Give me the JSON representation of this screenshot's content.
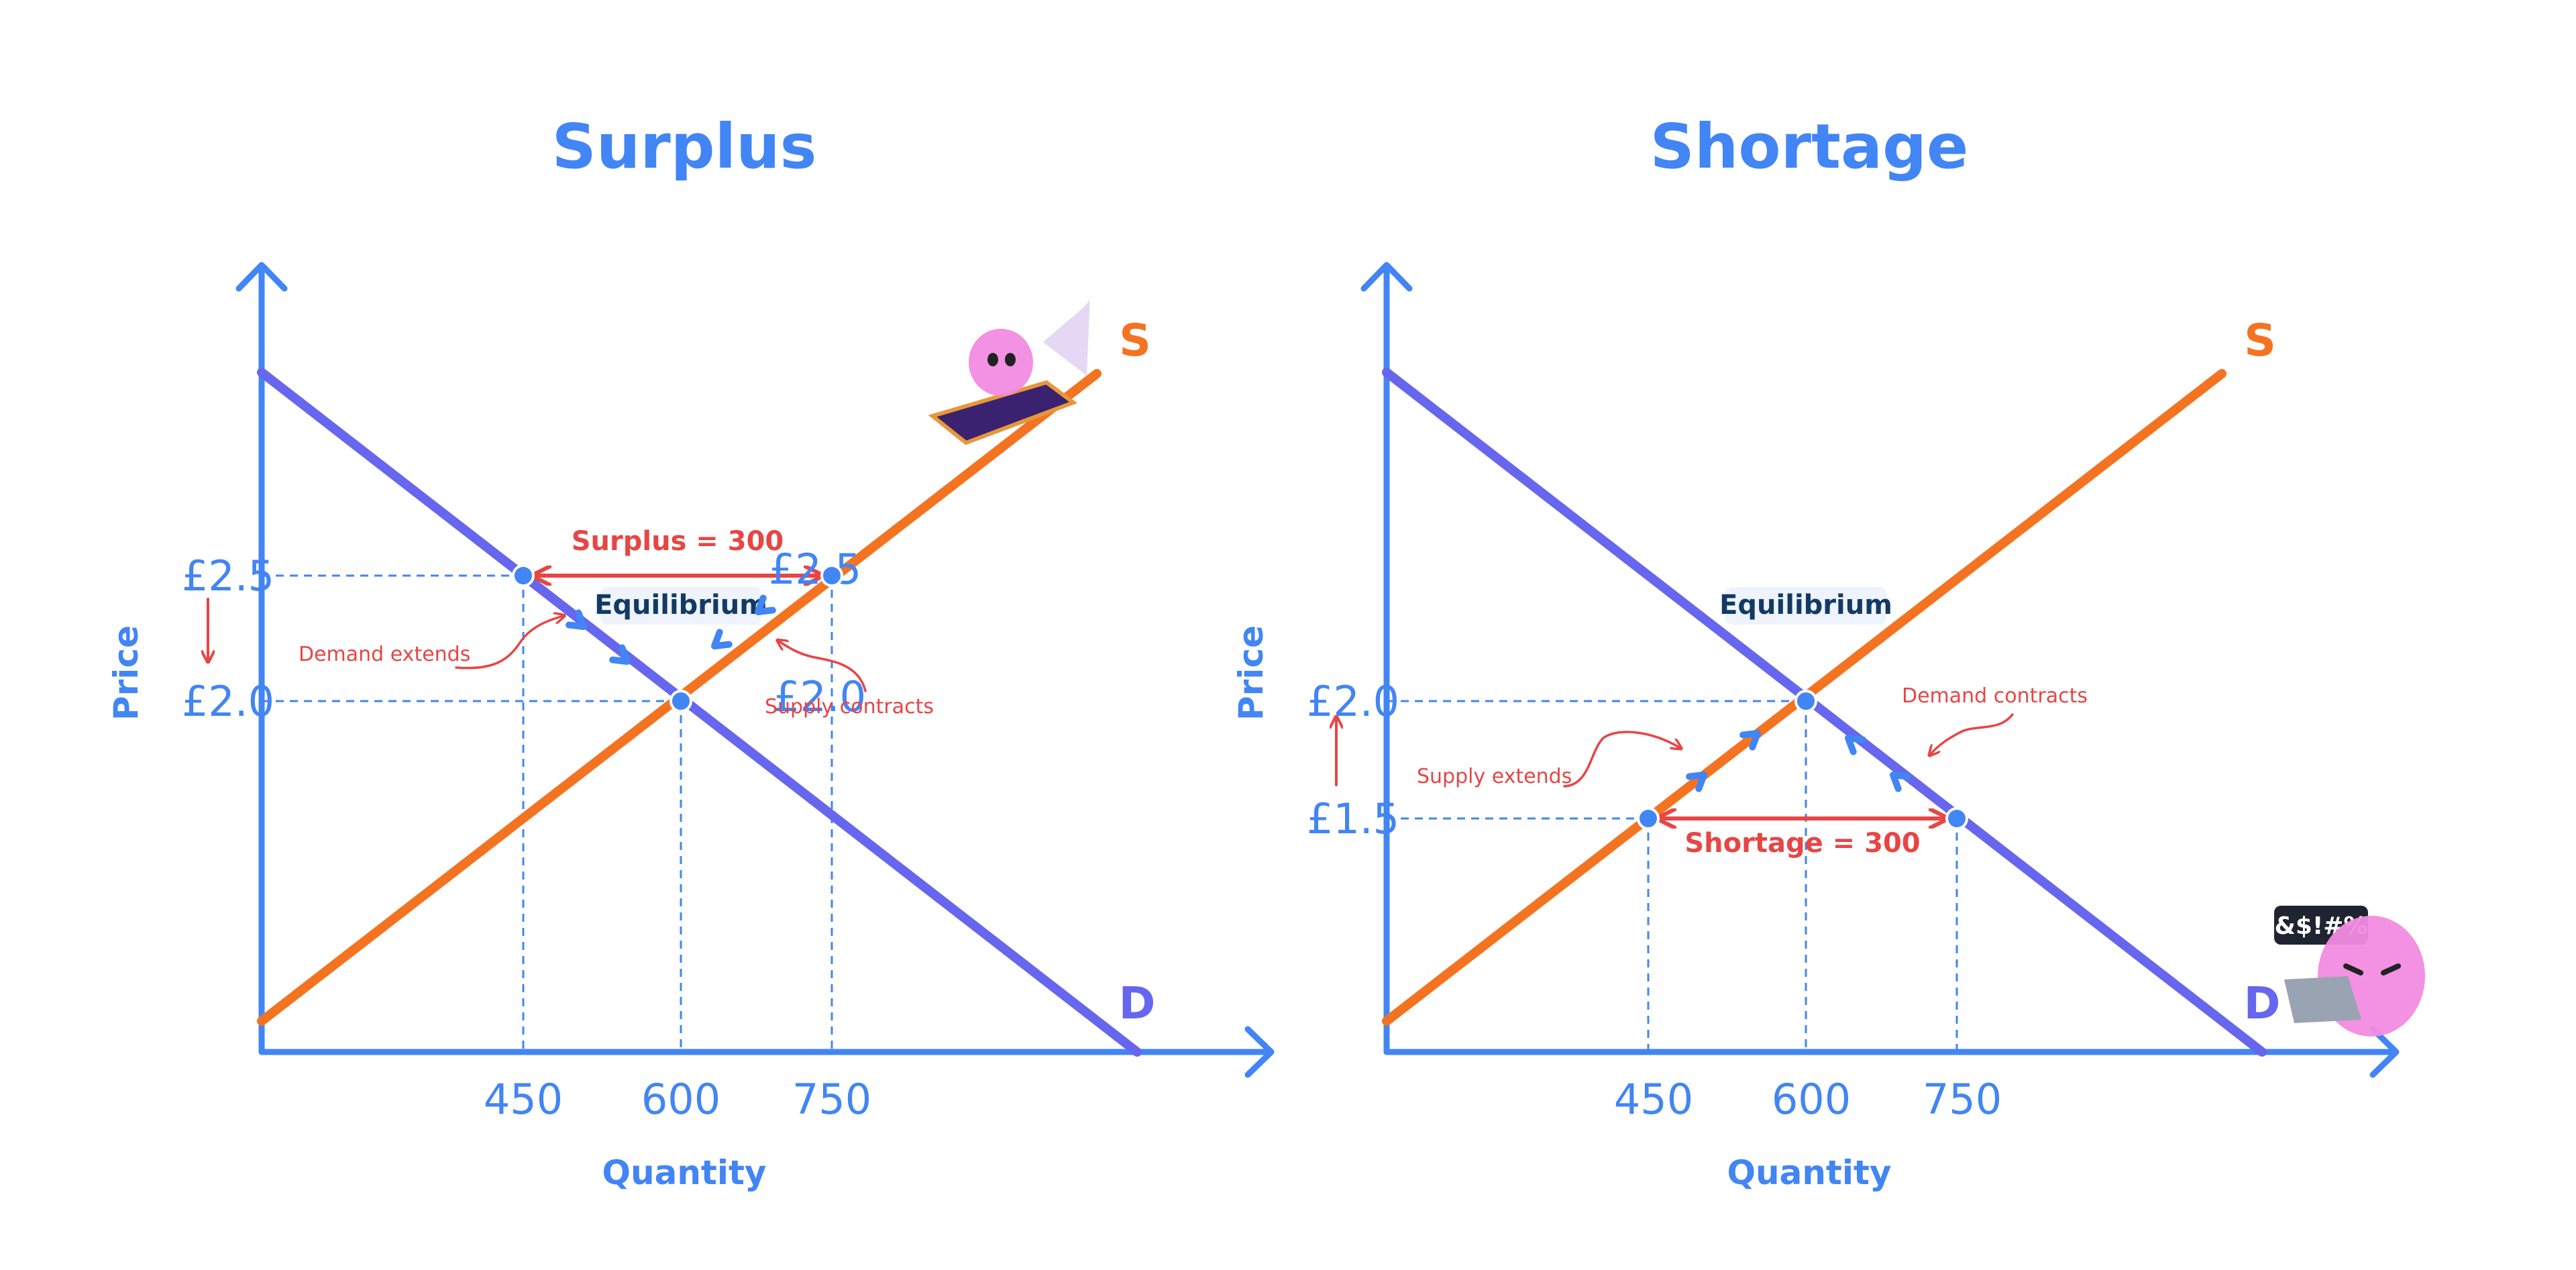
{
  "colors": {
    "axis": "#4285F4",
    "demand": "#6666EE",
    "supply": "#F47321",
    "guide": "#4285F4",
    "annotation": "#E84545",
    "eq_text": "#123A63",
    "point_fill": "#4285F4",
    "mascot": "#F28BE0"
  },
  "chart_data": [
    {
      "type": "line",
      "title": "Surplus",
      "xlabel": "Quantity",
      "ylabel": "Price",
      "x_ticks": [
        450,
        600,
        750
      ],
      "series": [
        {
          "name": "S",
          "kind": "supply"
        },
        {
          "name": "D",
          "kind": "demand"
        }
      ],
      "equilibrium": {
        "label": "Equilibrium",
        "quantity": 600,
        "price": 2.0
      },
      "price_ticks": [
        "£2.5",
        "£2.0"
      ],
      "in_plot_labels": [
        "£2.5",
        "£2.0"
      ],
      "price_change_arrow": "down",
      "gap": {
        "label": "Surplus = 300",
        "price": 2.5,
        "from_quantity": 450,
        "to_quantity": 750
      },
      "notes": [
        {
          "text": "Demand extends",
          "target": "demand"
        },
        {
          "text": "Supply contracts",
          "target": "supply"
        }
      ]
    },
    {
      "type": "line",
      "title": "Shortage",
      "xlabel": "Quantity",
      "ylabel": "Price",
      "x_ticks": [
        450,
        600,
        750
      ],
      "series": [
        {
          "name": "S",
          "kind": "supply"
        },
        {
          "name": "D",
          "kind": "demand"
        }
      ],
      "equilibrium": {
        "label": "Equilibrium",
        "quantity": 600,
        "price": 2.0
      },
      "price_ticks": [
        "£2.0",
        "£1.5"
      ],
      "price_change_arrow": "up",
      "gap": {
        "label": "Shortage = 300",
        "price": 1.5,
        "from_quantity": 450,
        "to_quantity": 750
      },
      "notes": [
        {
          "text": "Supply extends",
          "target": "supply"
        },
        {
          "text": "Demand contracts",
          "target": "demand"
        }
      ],
      "speech_badge": "&$!#%"
    }
  ]
}
